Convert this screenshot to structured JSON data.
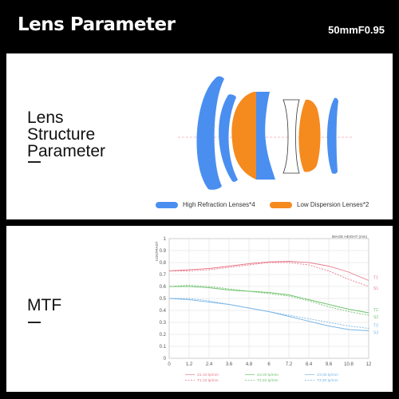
{
  "header": {
    "title": "Lens Parameter",
    "model": "50mmF0.95"
  },
  "structure_panel": {
    "label_lines": [
      "Lens",
      "Structure",
      "Parameter"
    ],
    "legend": [
      {
        "label": "High Refraction Lenses*4",
        "color": "#4a8ff0"
      },
      {
        "label": "Low Dispersion Lenses*2",
        "color": "#f58a1f"
      }
    ]
  },
  "mtf_panel": {
    "label": "MTF",
    "chart_data": {
      "type": "line",
      "ylabel": "CONTRAST",
      "xlabel": "IMAGE HEIGHT  (mm)",
      "xlim": [
        0,
        12
      ],
      "ylim": [
        0,
        1
      ],
      "x_ticks": [
        "0",
        "1.2",
        "2.4",
        "3.6",
        "4.8",
        "6",
        "7.2",
        "8.4",
        "9.6",
        "10.8",
        "12"
      ],
      "y_ticks": [
        "0",
        "0.1",
        "0.2",
        "0.3",
        "0.4",
        "0.5",
        "0.6",
        "0.7",
        "0.8",
        "0.9",
        "1"
      ],
      "x": [
        0,
        1.2,
        2.4,
        3.6,
        4.8,
        6,
        7.2,
        8.4,
        9.6,
        10.8,
        12
      ],
      "series": [
        {
          "name": "S1:10 lp/mm",
          "color": "#e87a8c",
          "dash": false,
          "values": [
            0.73,
            0.74,
            0.75,
            0.77,
            0.79,
            0.805,
            0.81,
            0.8,
            0.77,
            0.72,
            0.65
          ]
        },
        {
          "name": "T1:10 lp/mm",
          "color": "#e87a8c",
          "dash": true,
          "values": [
            0.73,
            0.73,
            0.74,
            0.76,
            0.78,
            0.8,
            0.8,
            0.78,
            0.73,
            0.66,
            0.6
          ]
        },
        {
          "name": "S2:20 lp/mm",
          "color": "#6fc26f",
          "dash": false,
          "values": [
            0.6,
            0.6,
            0.59,
            0.57,
            0.56,
            0.55,
            0.53,
            0.49,
            0.45,
            0.41,
            0.38
          ]
        },
        {
          "name": "T2:20 lp/mm",
          "color": "#6fc26f",
          "dash": true,
          "values": [
            0.6,
            0.61,
            0.6,
            0.58,
            0.56,
            0.54,
            0.52,
            0.48,
            0.43,
            0.39,
            0.36
          ]
        },
        {
          "name": "S3:30 lp/mm",
          "color": "#7ab6e6",
          "dash": false,
          "values": [
            0.5,
            0.49,
            0.47,
            0.45,
            0.42,
            0.39,
            0.35,
            0.31,
            0.27,
            0.24,
            0.23
          ]
        },
        {
          "name": "T3:30 lp/mm",
          "color": "#7ab6e6",
          "dash": true,
          "values": [
            0.5,
            0.5,
            0.48,
            0.45,
            0.42,
            0.39,
            0.36,
            0.33,
            0.3,
            0.27,
            0.25
          ]
        }
      ],
      "end_labels": [
        "T1",
        "S1",
        "T2",
        "S2",
        "T3",
        "S3"
      ],
      "legend": [
        [
          "S1:10 lp/mm",
          "S2:20 lp/mm",
          "S3:30 lp/mm"
        ],
        [
          "T1:10 lp/mm",
          "T2:20 lp/mm",
          "T3:30 lp/mm"
        ]
      ],
      "grid": true
    }
  }
}
